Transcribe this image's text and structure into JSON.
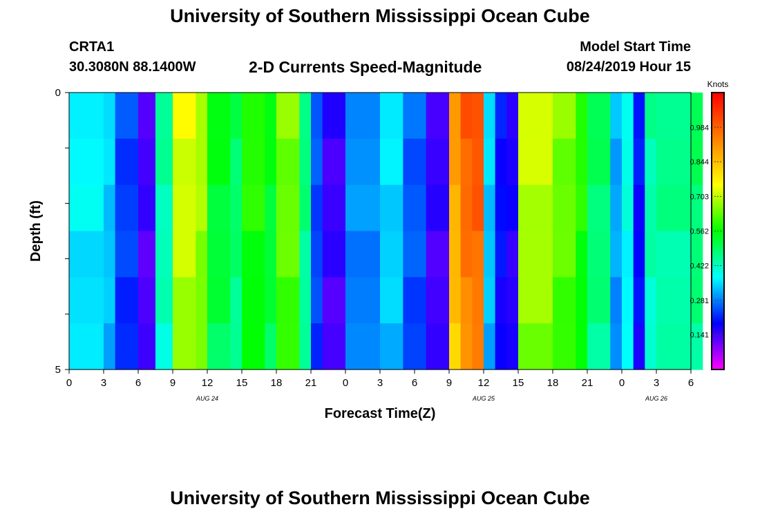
{
  "title": "University of Southern Mississippi Ocean Cube",
  "bottom_title": "University of Southern Mississippi Ocean Cube",
  "station": "CRTA1",
  "coords": "30.3080N 88.1400W",
  "product": "2-D Currents Speed-Magnitude",
  "model_start_label": "Model Start Time",
  "model_start_value": "08/24/2019 Hour 15",
  "chart_data": {
    "type": "heatmap",
    "xlabel": "Forecast Time(Z)",
    "ylabel": "Depth (ft)",
    "x_tick_labels": [
      "0",
      "3",
      "6",
      "9",
      "12",
      "15",
      "18",
      "21",
      "0",
      "3",
      "6",
      "9",
      "12",
      "15",
      "18",
      "21",
      "0",
      "3",
      "6"
    ],
    "x_hours_since_aug24_00z": [
      0,
      3,
      6,
      9,
      12,
      15,
      18,
      21,
      24,
      27,
      30,
      33,
      36,
      39,
      42,
      45,
      48,
      51,
      54
    ],
    "date_labels": [
      {
        "label": "AUG 24",
        "hour": 12
      },
      {
        "label": "AUG 25",
        "hour": 36
      },
      {
        "label": "AUG 26",
        "hour": 51
      }
    ],
    "y_tick_labels": [
      "0",
      "5"
    ],
    "ylim": [
      0,
      5
    ],
    "depth_layers": 6,
    "colorbar": {
      "title": "Knots",
      "ticks": [
        0.141,
        0.281,
        0.422,
        0.562,
        0.703,
        0.844,
        0.984
      ],
      "range": [
        0.0,
        1.125
      ],
      "colors": [
        "#ff00ff",
        "#0000ff",
        "#00ffff",
        "#00ff00",
        "#ffff00",
        "#ff8000",
        "#ff0000"
      ]
    },
    "columns": [
      {
        "hour": 0,
        "speed": 0.38
      },
      {
        "hour": 3,
        "speed": 0.35
      },
      {
        "hour": 4,
        "speed": 0.24
      },
      {
        "hour": 6,
        "speed": 0.14
      },
      {
        "hour": 7.5,
        "speed": 0.45
      },
      {
        "hour": 9,
        "speed": 0.74
      },
      {
        "hour": 11,
        "speed": 0.7
      },
      {
        "hour": 12,
        "speed": 0.55
      },
      {
        "hour": 14,
        "speed": 0.5
      },
      {
        "hour": 15,
        "speed": 0.6
      },
      {
        "hour": 17,
        "speed": 0.55
      },
      {
        "hour": 18,
        "speed": 0.66
      },
      {
        "hour": 20,
        "speed": 0.48
      },
      {
        "hour": 21,
        "speed": 0.25
      },
      {
        "hour": 22,
        "speed": 0.15
      },
      {
        "hour": 24,
        "speed": 0.3
      },
      {
        "hour": 27,
        "speed": 0.36
      },
      {
        "hour": 29,
        "speed": 0.26
      },
      {
        "hour": 31,
        "speed": 0.15
      },
      {
        "hour": 33,
        "speed": 0.9
      },
      {
        "hour": 34,
        "speed": 1.0
      },
      {
        "hour": 35,
        "speed": 1.02
      },
      {
        "hour": 36,
        "speed": 0.35
      },
      {
        "hour": 37,
        "speed": 0.2
      },
      {
        "hour": 38,
        "speed": 0.17
      },
      {
        "hour": 39,
        "speed": 0.72
      },
      {
        "hour": 42,
        "speed": 0.66
      },
      {
        "hour": 44,
        "speed": 0.6
      },
      {
        "hour": 45,
        "speed": 0.5
      },
      {
        "hour": 47,
        "speed": 0.32
      },
      {
        "hour": 48,
        "speed": 0.4
      },
      {
        "hour": 49,
        "speed": 0.2
      },
      {
        "hour": 50,
        "speed": 0.45
      },
      {
        "hour": 51,
        "speed": 0.47
      },
      {
        "hour": 54,
        "speed": 0.5
      }
    ]
  }
}
